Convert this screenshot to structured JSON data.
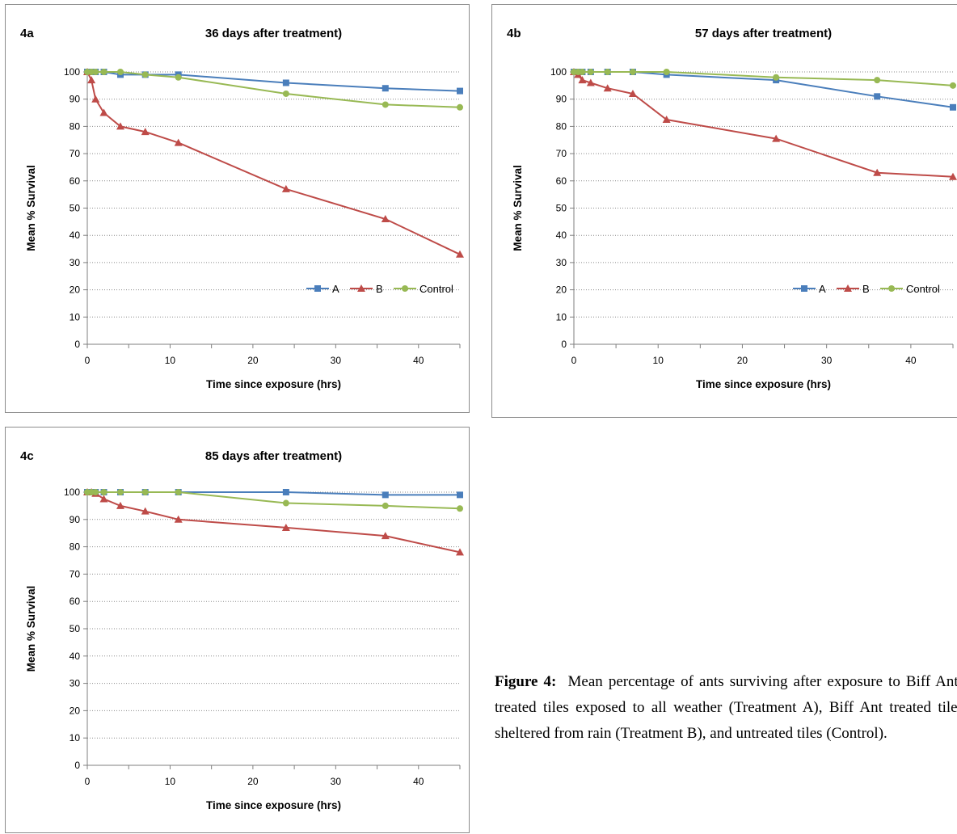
{
  "chart_data": [
    {
      "type": "line",
      "panel_label": "4a",
      "title": "36 days after treatment)",
      "xlabel": "Time since exposure (hrs)",
      "ylabel": "Mean % Survival",
      "xlim": [
        0,
        45
      ],
      "ylim": [
        0,
        100
      ],
      "xticks": [
        0,
        10,
        20,
        30,
        40
      ],
      "yticks": [
        0,
        10,
        20,
        30,
        40,
        50,
        60,
        70,
        80,
        90,
        100
      ],
      "grid": "horizontal dotted",
      "legend_position": "lower-right",
      "series": [
        {
          "name": "A",
          "color": "#4a7ebb",
          "marker": "square",
          "points": [
            [
              0,
              100
            ],
            [
              0.5,
              100
            ],
            [
              1,
              100
            ],
            [
              2,
              100
            ],
            [
              4,
              99
            ],
            [
              7,
              99
            ],
            [
              11,
              99
            ],
            [
              24,
              96
            ],
            [
              36,
              94
            ],
            [
              45,
              93
            ]
          ]
        },
        {
          "name": "B",
          "color": "#be4b48",
          "marker": "triangle",
          "points": [
            [
              0,
              100
            ],
            [
              0.5,
              97
            ],
            [
              1,
              90
            ],
            [
              2,
              85
            ],
            [
              4,
              80
            ],
            [
              7,
              78
            ],
            [
              11,
              74
            ],
            [
              24,
              57
            ],
            [
              36,
              46
            ],
            [
              45,
              33
            ]
          ]
        },
        {
          "name": "Control",
          "color": "#98b954",
          "marker": "circle",
          "points": [
            [
              0,
              100
            ],
            [
              0.5,
              100
            ],
            [
              1,
              100
            ],
            [
              2,
              100
            ],
            [
              4,
              100
            ],
            [
              7,
              99
            ],
            [
              11,
              98
            ],
            [
              24,
              92
            ],
            [
              36,
              88
            ],
            [
              45,
              87
            ]
          ]
        }
      ]
    },
    {
      "type": "line",
      "panel_label": "4b",
      "title": "57 days after treatment)",
      "xlabel": "Time since exposure (hrs)",
      "ylabel": "Mean % Survival",
      "xlim": [
        0,
        45
      ],
      "ylim": [
        0,
        100
      ],
      "xticks": [
        0,
        10,
        20,
        30,
        40
      ],
      "yticks": [
        0,
        10,
        20,
        30,
        40,
        50,
        60,
        70,
        80,
        90,
        100
      ],
      "grid": "horizontal dotted",
      "legend_position": "lower-right",
      "series": [
        {
          "name": "A",
          "color": "#4a7ebb",
          "marker": "square",
          "points": [
            [
              0,
              100
            ],
            [
              0.5,
              100
            ],
            [
              1,
              100
            ],
            [
              2,
              100
            ],
            [
              4,
              100
            ],
            [
              7,
              100
            ],
            [
              11,
              99
            ],
            [
              24,
              97
            ],
            [
              36,
              91
            ],
            [
              45,
              87
            ]
          ]
        },
        {
          "name": "B",
          "color": "#be4b48",
          "marker": "triangle",
          "points": [
            [
              0,
              100
            ],
            [
              0.5,
              99
            ],
            [
              1,
              97
            ],
            [
              2,
              96
            ],
            [
              4,
              94
            ],
            [
              7,
              92
            ],
            [
              11,
              82.5
            ],
            [
              24,
              75.5
            ],
            [
              36,
              63
            ],
            [
              45,
              61.5
            ]
          ]
        },
        {
          "name": "Control",
          "color": "#98b954",
          "marker": "circle",
          "points": [
            [
              0,
              100
            ],
            [
              0.5,
              100
            ],
            [
              1,
              100
            ],
            [
              2,
              100
            ],
            [
              4,
              100
            ],
            [
              7,
              100
            ],
            [
              11,
              100
            ],
            [
              24,
              98
            ],
            [
              36,
              97
            ],
            [
              45,
              95
            ]
          ]
        }
      ]
    },
    {
      "type": "line",
      "panel_label": "4c",
      "title": "85 days after treatment)",
      "xlabel": "Time since exposure (hrs)",
      "ylabel": "Mean % Survival",
      "xlim": [
        0,
        45
      ],
      "ylim": [
        0,
        100
      ],
      "xticks": [
        0,
        10,
        20,
        30,
        40
      ],
      "yticks": [
        0,
        10,
        20,
        30,
        40,
        50,
        60,
        70,
        80,
        90,
        100
      ],
      "grid": "horizontal dotted",
      "legend_position": "none",
      "series": [
        {
          "name": "A",
          "color": "#4a7ebb",
          "marker": "square",
          "points": [
            [
              0,
              100
            ],
            [
              0.5,
              100
            ],
            [
              1,
              100
            ],
            [
              2,
              100
            ],
            [
              4,
              100
            ],
            [
              7,
              100
            ],
            [
              11,
              100
            ],
            [
              24,
              100
            ],
            [
              36,
              99
            ],
            [
              45,
              99
            ]
          ]
        },
        {
          "name": "B",
          "color": "#be4b48",
          "marker": "triangle",
          "points": [
            [
              0,
              100
            ],
            [
              0.5,
              100
            ],
            [
              1,
              99.5
            ],
            [
              2,
              97.5
            ],
            [
              4,
              95
            ],
            [
              7,
              93
            ],
            [
              11,
              90
            ],
            [
              24,
              87
            ],
            [
              36,
              84
            ],
            [
              45,
              78
            ]
          ]
        },
        {
          "name": "Control",
          "color": "#98b954",
          "marker": "circle",
          "points": [
            [
              0,
              100
            ],
            [
              0.5,
              100
            ],
            [
              1,
              100
            ],
            [
              2,
              100
            ],
            [
              4,
              100
            ],
            [
              7,
              100
            ],
            [
              11,
              100
            ],
            [
              24,
              96
            ],
            [
              36,
              95
            ],
            [
              45,
              94
            ]
          ]
        }
      ]
    }
  ],
  "caption": {
    "label": "Figure 4:",
    "text": "Mean percentage of ants surviving after exposure to Biff Ant-treated tiles exposed to all weather (Treatment A), Biff Ant treated tiles sheltered from rain (Treatment B), and untreated tiles (Control)."
  }
}
